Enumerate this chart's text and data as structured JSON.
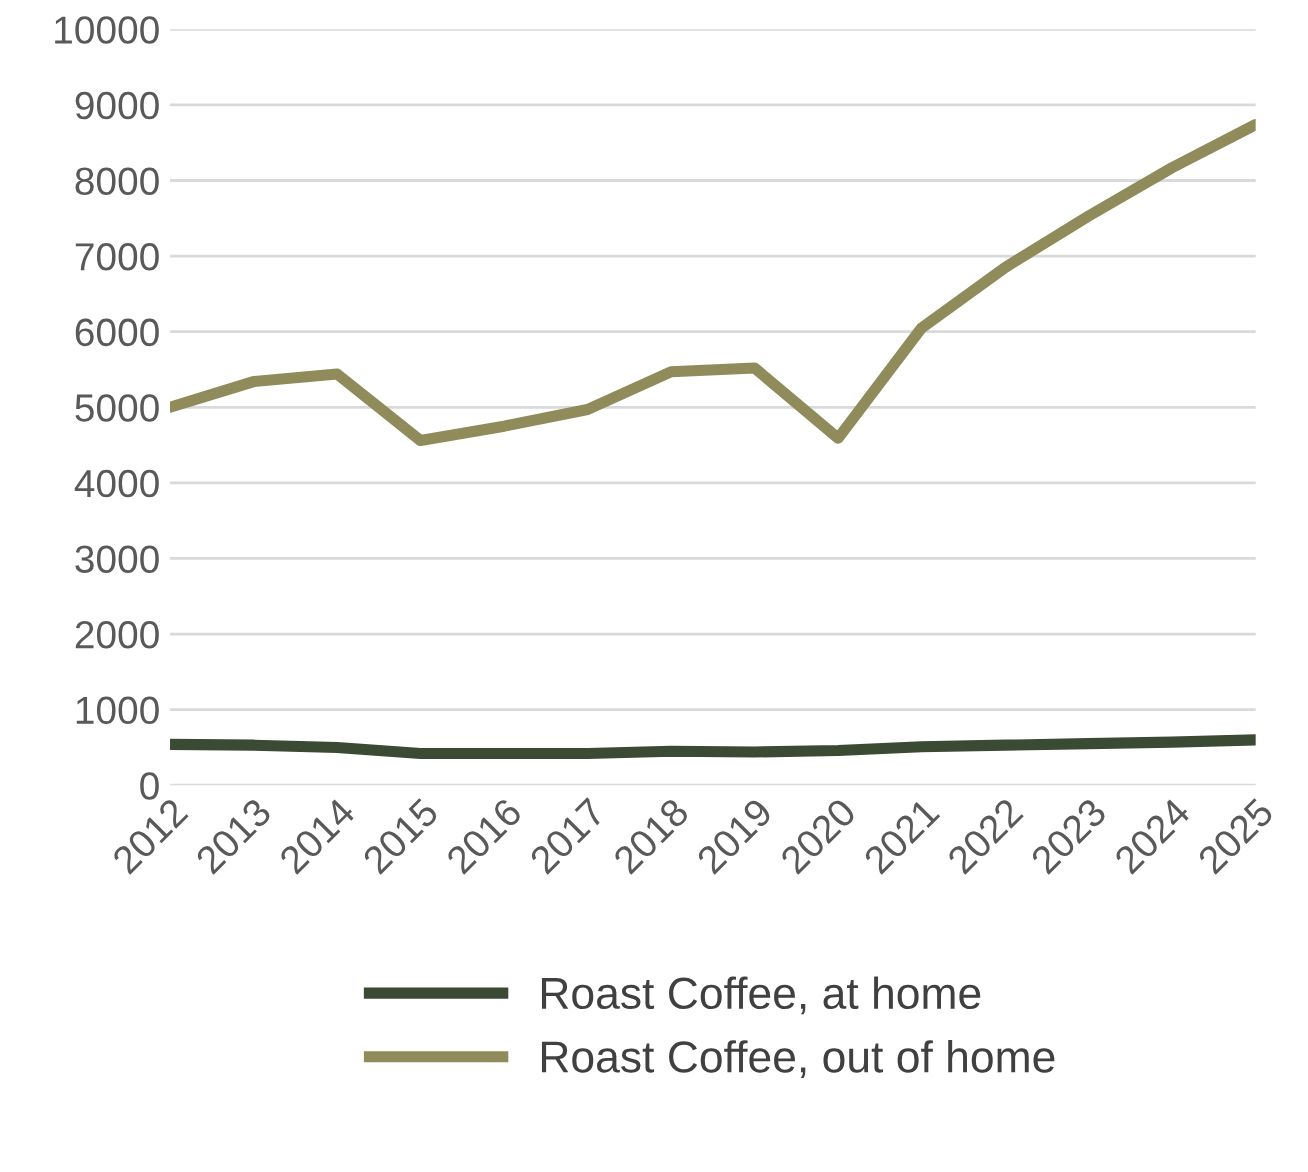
{
  "chart_data": {
    "type": "line",
    "x": [
      2012,
      2013,
      2014,
      2015,
      2016,
      2017,
      2018,
      2019,
      2020,
      2021,
      2022,
      2023,
      2024,
      2025
    ],
    "series": [
      {
        "name": "Roast Coffee, at home",
        "color": "#3b4a32",
        "values": [
          540,
          530,
          500,
          420,
          420,
          420,
          450,
          440,
          460,
          510,
          530,
          550,
          570,
          600
        ]
      },
      {
        "name": "Roast Coffee, out of home",
        "color": "#8f8b5a",
        "values": [
          5000,
          5340,
          5440,
          4560,
          4750,
          4970,
          5470,
          5520,
          4590,
          6050,
          6850,
          7530,
          8170,
          8740
        ]
      }
    ],
    "xlim": [
      2012,
      2025
    ],
    "xticks": [
      2012,
      2013,
      2014,
      2015,
      2016,
      2017,
      2018,
      2019,
      2020,
      2021,
      2022,
      2023,
      2024,
      2025
    ],
    "ylim": [
      0,
      10000
    ],
    "yticks": [
      0,
      1000,
      2000,
      3000,
      4000,
      5000,
      6000,
      7000,
      8000,
      9000,
      10000
    ],
    "grid": "y",
    "legend": "bottom",
    "line_style": "solid",
    "marker": "none"
  }
}
